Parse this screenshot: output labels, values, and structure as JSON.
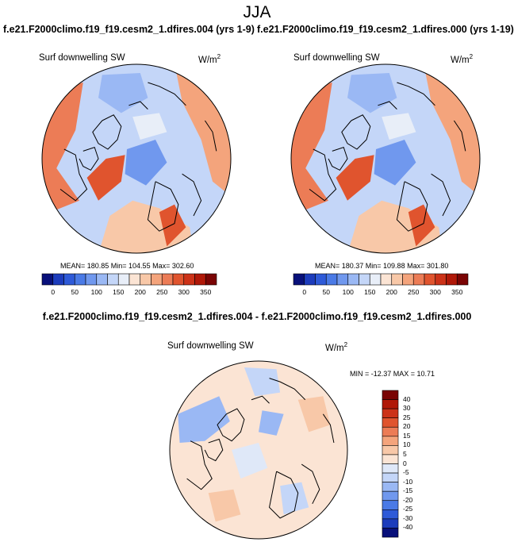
{
  "title": "JJA",
  "panels": [
    {
      "case_label": "f.e21.F2000climo.f19_f19.cesm2_1.dfires.004 (yrs 1-9)",
      "variable": "Surf downwelling SW",
      "units_base": "W/m",
      "units_exp": "2",
      "stats": "MEAN= 180.85  Min= 104.55  Max= 302.60"
    },
    {
      "case_label": "f.e21.F2000climo.f19_f19.cesm2_1.dfires.000 (yrs 1-19)",
      "variable": "Surf downwelling SW",
      "units_base": "W/m",
      "units_exp": "2",
      "stats": "MEAN= 180.37  Min= 109.88  Max= 301.80"
    }
  ],
  "colorbar": {
    "colors": [
      "#08107a",
      "#1c3cbc",
      "#2e5ad8",
      "#4a7ae6",
      "#7098ee",
      "#9ab8f4",
      "#c4d6f8",
      "#e8eef8",
      "#fbe4d4",
      "#f8c8a8",
      "#f4a47c",
      "#ec7c56",
      "#e0542e",
      "#cc3218",
      "#b01808",
      "#7a0404"
    ],
    "ticks": [
      "0",
      "50",
      "100",
      "150",
      "200",
      "250",
      "300",
      "350"
    ]
  },
  "difference": {
    "title": "f.e21.F2000climo.f19_f19.cesm2_1.dfires.004 - f.e21.F2000climo.f19_f19.cesm2_1.dfires.000",
    "variable": "Surf downwelling SW",
    "units_base": "W/m",
    "units_exp": "2",
    "stats": "MIN = -12.37 MAX =  10.71",
    "colors": [
      "#7a0404",
      "#b01808",
      "#cc3218",
      "#e0542e",
      "#ec7c56",
      "#f4a47c",
      "#f8c8a8",
      "#fbe4d4",
      "#dfe8f8",
      "#c4d6f8",
      "#9ab8f4",
      "#7098ee",
      "#4a7ae6",
      "#2e5ad8",
      "#1c3cbc",
      "#08107a"
    ],
    "ticks": [
      "40",
      "30",
      "25",
      "20",
      "15",
      "10",
      "5",
      "0",
      "-5",
      "-10",
      "-15",
      "-20",
      "-25",
      "-30",
      "-40"
    ]
  }
}
